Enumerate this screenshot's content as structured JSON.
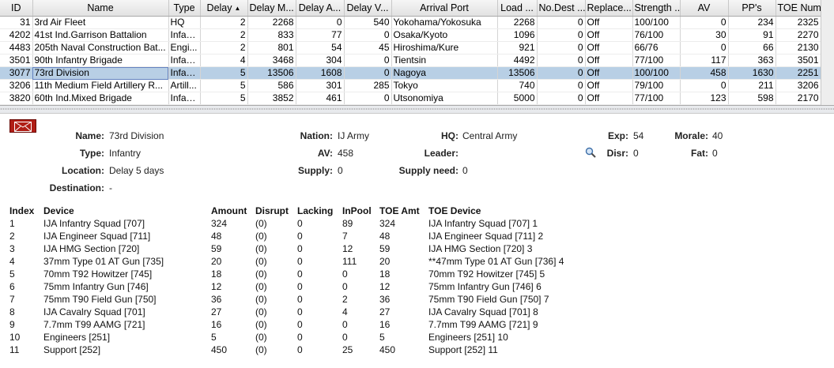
{
  "table": {
    "columns": [
      "ID",
      "Name",
      "Type",
      "Delay",
      "Delay M...",
      "Delay A...",
      "Delay V...",
      "Arrival Port",
      "Load ...",
      "No.Dest ...",
      "Replace...",
      "Strength ...",
      "AV",
      "PP's",
      "TOE Num"
    ],
    "sort_column": "Delay",
    "sort_direction": "ascending",
    "rows": [
      [
        "31",
        "3rd Air Fleet",
        "HQ",
        "2",
        "2268",
        "0",
        "540",
        "Yokohama/Yokosuka",
        "2268",
        "0",
        "Off",
        "100/100",
        "0",
        "234",
        "2325"
      ],
      [
        "4202",
        "41st Ind.Garrison Battalion",
        "Infan...",
        "2",
        "833",
        "77",
        "0",
        "Osaka/Kyoto",
        "1096",
        "0",
        "Off",
        "76/100",
        "30",
        "91",
        "2270"
      ],
      [
        "4483",
        "205th Naval Construction Bat...",
        "Engi...",
        "2",
        "801",
        "54",
        "45",
        "Hiroshima/Kure",
        "921",
        "0",
        "Off",
        "66/76",
        "0",
        "66",
        "2130"
      ],
      [
        "3501",
        "90th Infantry Brigade",
        "Infan...",
        "4",
        "3468",
        "304",
        "0",
        "Tientsin",
        "4492",
        "0",
        "Off",
        "77/100",
        "117",
        "363",
        "3501"
      ],
      [
        "3077",
        "73rd Division",
        "Infan...",
        "5",
        "13506",
        "1608",
        "0",
        "Nagoya",
        "13506",
        "0",
        "Off",
        "100/100",
        "458",
        "1630",
        "2251"
      ],
      [
        "3206",
        "11th Medium Field Artillery R...",
        "Artill...",
        "5",
        "586",
        "301",
        "285",
        "Tokyo",
        "740",
        "0",
        "Off",
        "79/100",
        "0",
        "211",
        "3206"
      ],
      [
        "3820",
        "60th Ind.Mixed Brigade",
        "Infan...",
        "5",
        "3852",
        "461",
        "0",
        "Utsonomiya",
        "5000",
        "0",
        "Off",
        "77/100",
        "123",
        "598",
        "2170"
      ]
    ],
    "selected_row": 4
  },
  "detail": {
    "mail_icon": "envelope-icon",
    "name_label": "Name:",
    "name": "73rd Division",
    "type_label": "Type:",
    "type": "Infantry",
    "location_label": "Location:",
    "location": "Delay 5 days",
    "destination_label": "Destination:",
    "destination": "-",
    "nation_label": "Nation:",
    "nation": "IJ Army",
    "av_label": "AV:",
    "av": "458",
    "supply_label": "Supply:",
    "supply": "0",
    "hq_label": "HQ:",
    "hq": "Central Army",
    "leader_label": "Leader:",
    "leader": "",
    "supply_need_label": "Supply need:",
    "supply_need": "0",
    "exp_label": "Exp:",
    "exp": "54",
    "disr_label": "Disr:",
    "disr": "0",
    "morale_label": "Morale:",
    "morale": "40",
    "fat_label": "Fat:",
    "fat": "0"
  },
  "devices": {
    "headers": [
      "Index",
      "Device",
      "Amount",
      "Disrupt",
      "Lacking",
      "InPool",
      "TOE Amt",
      "TOE Device"
    ],
    "rows": [
      [
        "1",
        "IJA Infantry Squad [707]",
        "324",
        "(0)",
        "0",
        "89",
        "324",
        "IJA Infantry Squad [707] 1"
      ],
      [
        "2",
        "IJA Engineer Squad [711]",
        "48",
        "(0)",
        "0",
        "7",
        "48",
        "IJA Engineer Squad [711] 2"
      ],
      [
        "3",
        "IJA HMG Section [720]",
        "59",
        "(0)",
        "0",
        "12",
        "59",
        "IJA HMG Section [720] 3"
      ],
      [
        "4",
        "37mm Type 01 AT Gun [735]",
        "20",
        "(0)",
        "0",
        "111",
        "20",
        "**47mm Type 01 AT Gun [736] 4"
      ],
      [
        "5",
        "70mm T92 Howitzer [745]",
        "18",
        "(0)",
        "0",
        "0",
        "18",
        "70mm T92 Howitzer [745] 5"
      ],
      [
        "6",
        "75mm Infantry Gun [746]",
        "12",
        "(0)",
        "0",
        "0",
        "12",
        "75mm Infantry Gun [746] 6"
      ],
      [
        "7",
        "75mm T90 Field Gun [750]",
        "36",
        "(0)",
        "0",
        "2",
        "36",
        "75mm T90 Field Gun [750] 7"
      ],
      [
        "8",
        "IJA Cavalry Squad [701]",
        "27",
        "(0)",
        "0",
        "4",
        "27",
        "IJA Cavalry Squad [701] 8"
      ],
      [
        "9",
        "7.7mm T99 AAMG [721]",
        "16",
        "(0)",
        "0",
        "0",
        "16",
        "7.7mm T99 AAMG [721] 9"
      ],
      [
        "10",
        "Engineers [251]",
        "5",
        "(0)",
        "0",
        "0",
        "5",
        "Engineers [251] 10"
      ],
      [
        "11",
        "Support [252]",
        "450",
        "(0)",
        "0",
        "25",
        "450",
        "Support [252] 11"
      ]
    ]
  }
}
